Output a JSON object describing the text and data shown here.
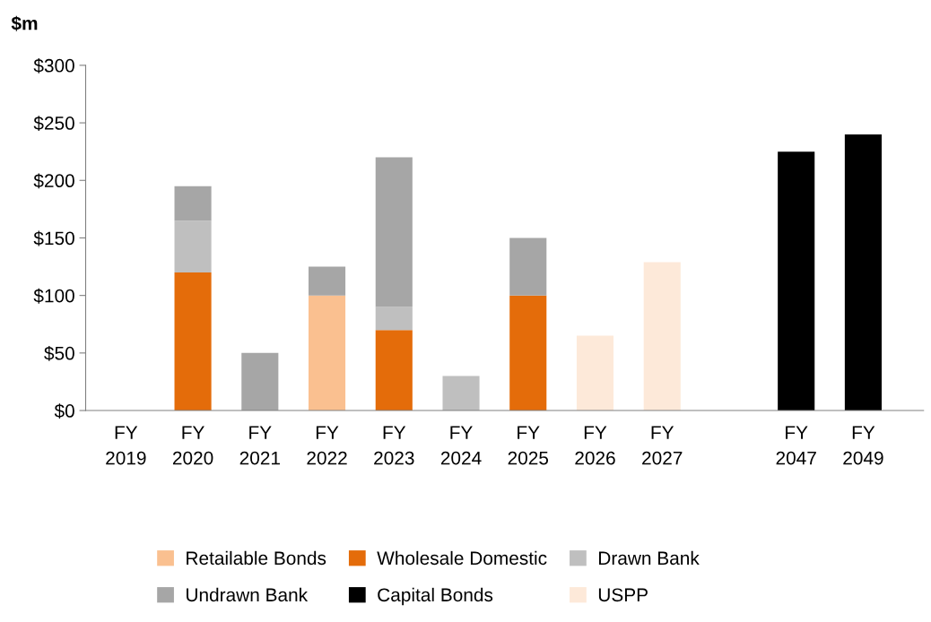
{
  "chart_data": {
    "type": "bar",
    "stacked": true,
    "ylabel": "$m",
    "categories": [
      "FY\n2019",
      "FY\n2020",
      "FY\n2021",
      "FY\n2022",
      "FY\n2023",
      "FY\n2024",
      "FY\n2025",
      "FY\n2026",
      "FY\n2027",
      null,
      "FY\n2047",
      "FY\n2049"
    ],
    "series": [
      {
        "name": "Retailable Bonds",
        "color": "#fac090",
        "values": [
          null,
          null,
          null,
          100,
          null,
          null,
          null,
          null,
          null,
          null,
          null,
          null
        ]
      },
      {
        "name": "Wholesale Domestic",
        "color": "#e46c0a",
        "values": [
          null,
          120,
          null,
          null,
          70,
          null,
          100,
          null,
          null,
          null,
          null,
          null
        ]
      },
      {
        "name": "Drawn Bank",
        "color": "#bfbfbf",
        "values": [
          null,
          45,
          null,
          null,
          20,
          30,
          null,
          null,
          null,
          null,
          null,
          null
        ]
      },
      {
        "name": "Undrawn Bank",
        "color": "#a6a6a6",
        "values": [
          null,
          30,
          50,
          25,
          130,
          null,
          50,
          null,
          null,
          null,
          null,
          null
        ]
      },
      {
        "name": "Capital Bonds",
        "color": "#000000",
        "values": [
          null,
          null,
          null,
          null,
          null,
          null,
          null,
          null,
          null,
          null,
          225,
          240
        ]
      },
      {
        "name": "USPP",
        "color": "#fde9d9",
        "values": [
          null,
          null,
          null,
          null,
          null,
          null,
          null,
          65,
          129,
          null,
          null,
          null
        ]
      }
    ],
    "ylim": [
      0,
      300
    ],
    "yticks": [
      {
        "value": 0,
        "label": "$0"
      },
      {
        "value": 50,
        "label": "$50"
      },
      {
        "value": 100,
        "label": "$100"
      },
      {
        "value": 150,
        "label": "$150"
      },
      {
        "value": 200,
        "label": "$200"
      },
      {
        "value": 250,
        "label": "$250"
      },
      {
        "value": 300,
        "label": "$300"
      }
    ],
    "grid": false,
    "legend": "bottom"
  }
}
